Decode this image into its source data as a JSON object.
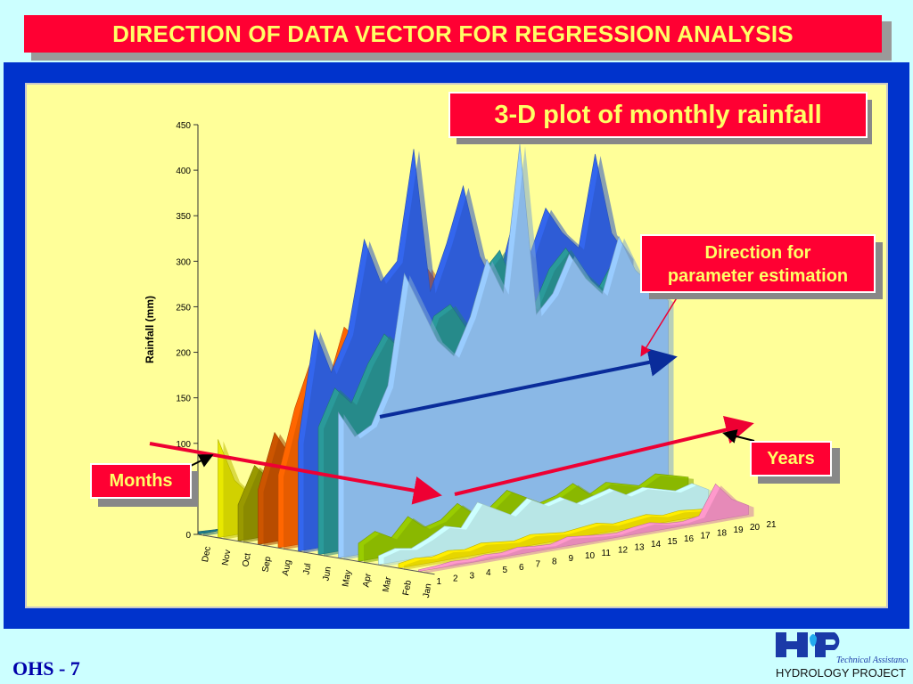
{
  "slide": {
    "title": "DIRECTION OF DATA VECTOR FOR REGRESSION ANALYSIS",
    "footer": "OHS - 7",
    "logo_top": "Technical Assistance",
    "logo_bottom": "HYDROLOGY PROJECT",
    "colors": {
      "title_bg": "#ff0033",
      "title_text": "#ffff66",
      "panel": "#0033cc",
      "plot_bg": "#ffff99"
    }
  },
  "callouts": {
    "plot_title": "3-D plot of monthly rainfall",
    "direction_line1": "Direction for",
    "direction_line2": "parameter estimation",
    "years": "Years",
    "months": "Months"
  },
  "chart_data": {
    "type": "bar",
    "subtype": "3d-area",
    "title": "3-D plot of monthly rainfall",
    "ylabel": "Rainfall (mm)",
    "ylim": [
      0,
      450
    ],
    "yticks": [
      0,
      50,
      100,
      150,
      200,
      250,
      300,
      350,
      400,
      450
    ],
    "months": [
      "Dec",
      "Nov",
      "Oct",
      "Sep",
      "Aug",
      "Jul",
      "Jun",
      "May",
      "Apr",
      "Mar",
      "Feb",
      "Jan"
    ],
    "years": [
      1,
      2,
      3,
      4,
      5,
      6,
      7,
      8,
      9,
      10,
      11,
      12,
      13,
      14,
      15,
      16,
      17,
      18,
      19,
      20,
      21
    ],
    "series": [
      {
        "month": "Dec",
        "color": "#1a7a8a",
        "values": [
          3,
          2,
          2,
          3,
          2,
          2,
          3,
          2,
          2,
          3,
          2,
          2,
          3,
          2,
          2,
          3,
          2,
          2,
          3,
          2,
          2
        ]
      },
      {
        "month": "Nov",
        "color": "#e8e800",
        "values": [
          108,
          60,
          40,
          45,
          30,
          25,
          35,
          20,
          30,
          40,
          30,
          20,
          25,
          35,
          20,
          25,
          30,
          20,
          25,
          20,
          15
        ]
      },
      {
        "month": "Oct",
        "color": "#999900",
        "values": [
          40,
          80,
          60,
          50,
          70,
          45,
          55,
          60,
          50,
          70,
          40,
          60,
          50,
          45,
          55,
          40,
          50,
          60,
          45,
          40,
          35
        ]
      },
      {
        "month": "Sep",
        "color": "#cc5500",
        "values": [
          60,
          120,
          90,
          150,
          110,
          130,
          180,
          140,
          120,
          160,
          130,
          150,
          110,
          140,
          120,
          130,
          150,
          120,
          110,
          130,
          120
        ]
      },
      {
        "month": "Aug",
        "color": "#ff6600",
        "values": [
          80,
          150,
          200,
          170,
          230,
          210,
          260,
          240,
          220,
          280,
          250,
          230,
          240,
          260,
          230,
          220,
          250,
          240,
          230,
          250,
          240
        ]
      },
      {
        "month": "Jul",
        "color": "#3366ee",
        "values": [
          120,
          240,
          190,
          230,
          330,
          280,
          300,
          420,
          260,
          310,
          370,
          290,
          250,
          320,
          280,
          330,
          300,
          280,
          380,
          290,
          260
        ]
      },
      {
        "month": "Jun",
        "color": "#2a9a9a",
        "values": [
          140,
          180,
          160,
          200,
          230,
          210,
          190,
          240,
          250,
          220,
          280,
          300,
          250,
          230,
          270,
          290,
          260,
          240,
          270,
          250,
          230
        ]
      },
      {
        "month": "May",
        "color": "#99ccff",
        "values": [
          160,
          130,
          140,
          180,
          300,
          260,
          220,
          200,
          240,
          300,
          260,
          420,
          230,
          250,
          290,
          260,
          240,
          300,
          260,
          240,
          220
        ]
      },
      {
        "month": "Apr",
        "color": "#99cc00",
        "values": [
          20,
          30,
          20,
          40,
          25,
          30,
          45,
          30,
          35,
          50,
          40,
          30,
          35,
          45,
          30,
          40,
          35,
          30,
          40,
          35,
          30
        ]
      },
      {
        "month": "Mar",
        "color": "#ccffff",
        "values": [
          10,
          15,
          12,
          20,
          30,
          25,
          50,
          40,
          30,
          45,
          35,
          40,
          30,
          35,
          40,
          30,
          35,
          30,
          25,
          30,
          20
        ]
      },
      {
        "month": "Feb",
        "color": "#ffee00",
        "values": [
          5,
          8,
          6,
          10,
          8,
          12,
          10,
          8,
          12,
          10,
          8,
          10,
          12,
          8,
          10,
          12,
          8,
          10,
          8,
          6,
          5
        ]
      },
      {
        "month": "Jan",
        "color": "#ff99cc",
        "values": [
          2,
          3,
          5,
          4,
          6,
          5,
          8,
          6,
          5,
          10,
          8,
          6,
          5,
          8,
          10,
          6,
          5,
          8,
          40,
          20,
          10
        ]
      }
    ]
  }
}
